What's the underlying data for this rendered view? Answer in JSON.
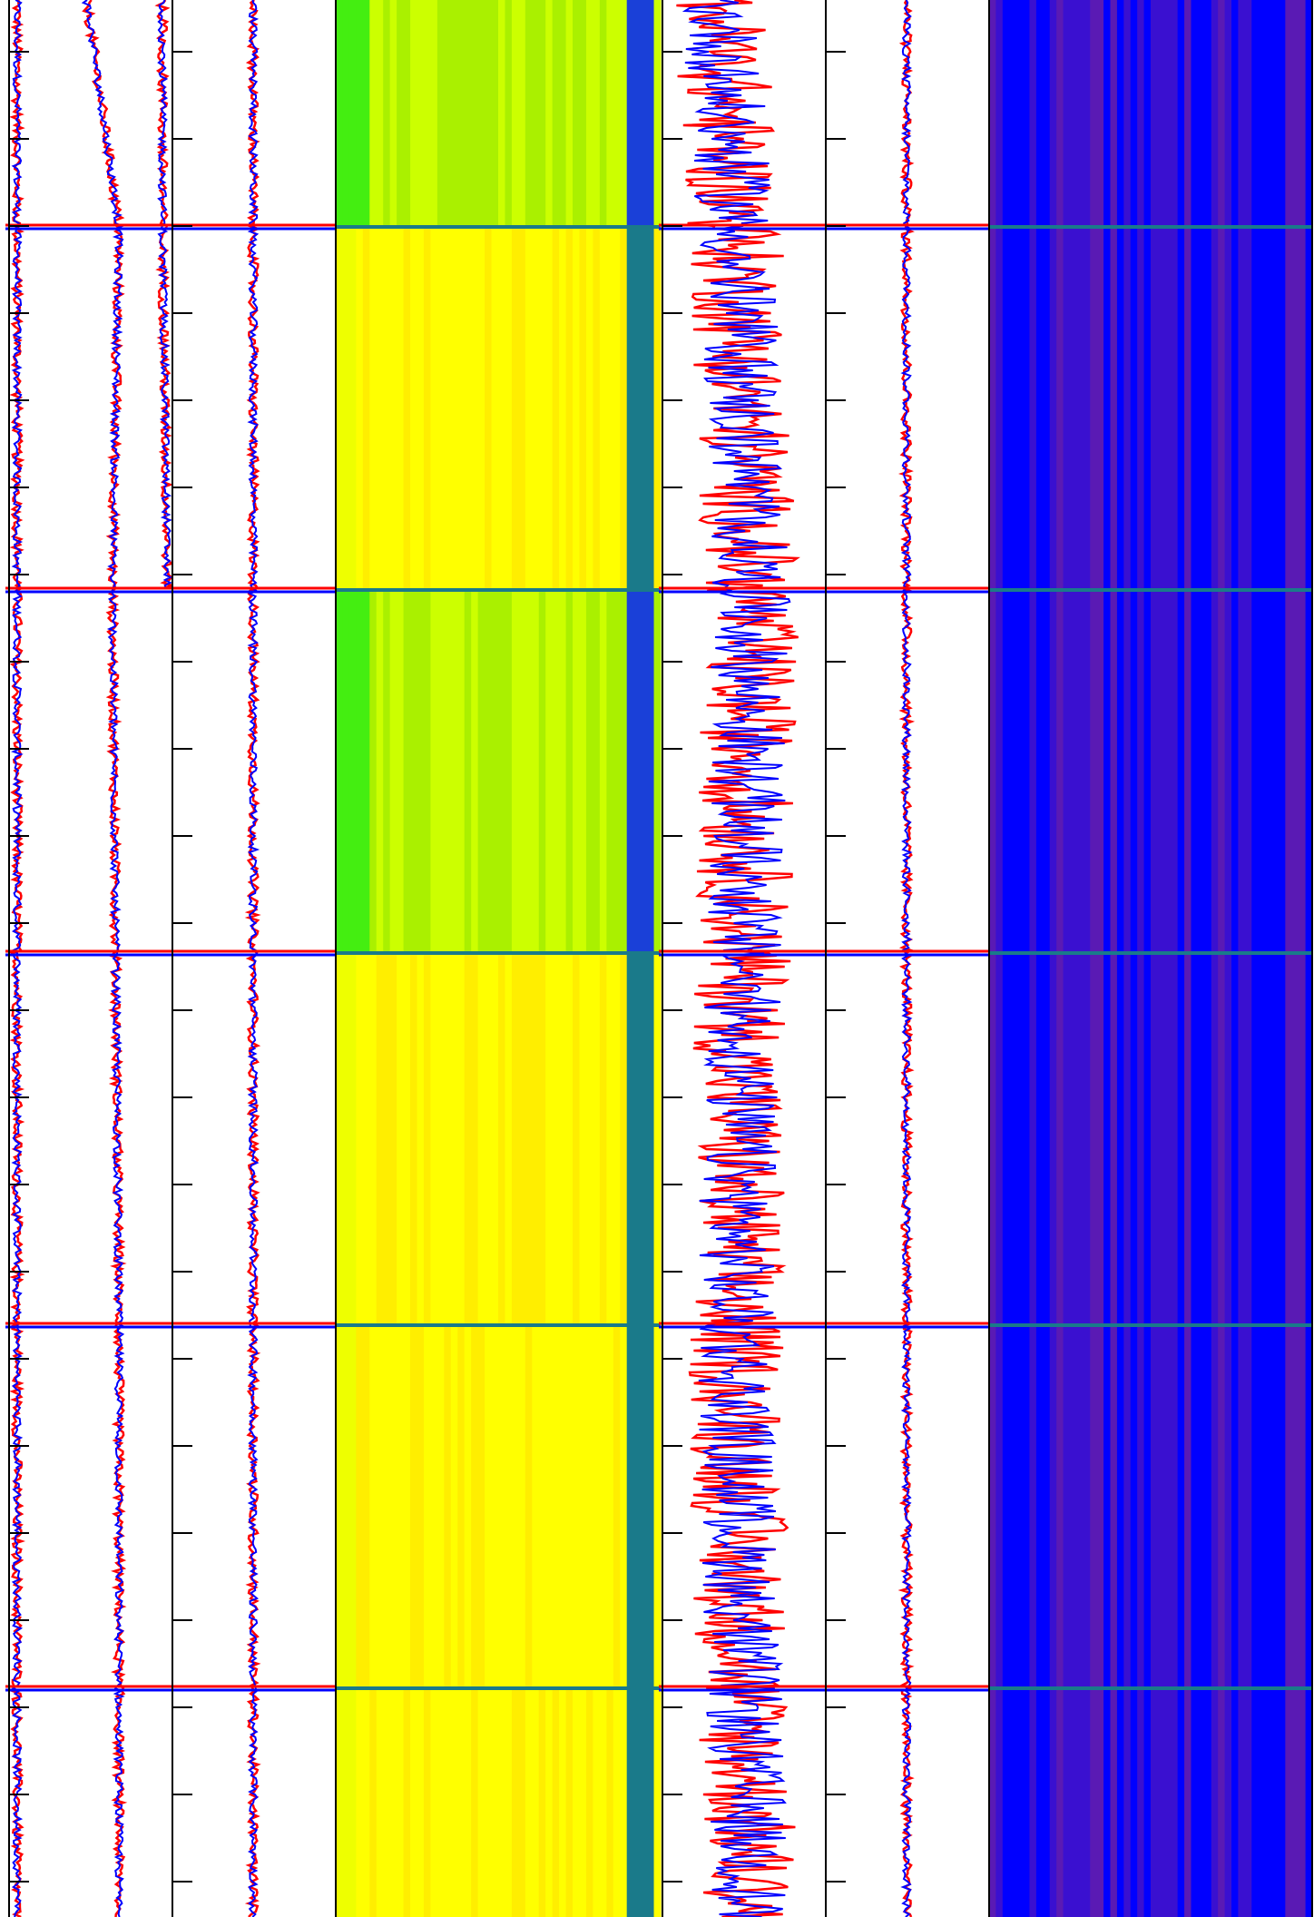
{
  "figure": {
    "orientation": "vertical-track-log",
    "ylabel": "",
    "legend": "none"
  },
  "colors": {
    "trace_primary": "#ff0000",
    "trace_secondary": "#0000ff",
    "axis": "#000000",
    "background": "#ffffff",
    "heatmap_yellow": "#ffff00",
    "heatmap_green": "#66ee00",
    "heatmap_teal": "#1a7a8a",
    "heatmap_blue": "#0000ff",
    "heatmap_purple": "#5a1ab4"
  },
  "chart_data": [
    {
      "type": "line",
      "track": 1,
      "title": "",
      "xlabel": "",
      "grid": false,
      "boundaries_depth": [
        250,
        650,
        1050,
        1460,
        1860
      ],
      "ylim": [
        0,
        2112
      ],
      "series": [
        {
          "depth": [
            0,
            250,
            650,
            1050,
            1460,
            1860,
            2112
          ],
          "values": [
            0.05,
            0.05,
            0.05,
            0.05,
            0.05,
            0.05,
            0.05
          ]
        },
        {
          "depth": [
            0,
            250,
            650,
            1050,
            1460,
            1860,
            2112
          ],
          "values": [
            0.48,
            0.68,
            0.64,
            0.66,
            0.68,
            0.68,
            0.68
          ]
        },
        {
          "depth": [
            0,
            250,
            650,
            1050,
            2112
          ],
          "values": [
            0.95,
            0.95,
            0.98,
            null,
            null
          ]
        }
      ]
    },
    {
      "type": "line",
      "track": 2,
      "title": "",
      "xlabel": "",
      "grid": false,
      "boundaries_depth": [
        250,
        650,
        1050,
        1460,
        1860
      ],
      "ylim": [
        0,
        2112
      ],
      "series": [
        {
          "depth": [
            0,
            2112
          ],
          "values": [
            0.5,
            0.5
          ]
        }
      ]
    },
    {
      "type": "heatmap",
      "track": 3,
      "title": "",
      "xlabel": "",
      "boundaries_depth": [
        250,
        650,
        1050,
        1460,
        1860
      ],
      "ylim": [
        0,
        2112
      ],
      "zones": [
        {
          "from": 0,
          "to": 250,
          "tone": "green"
        },
        {
          "from": 250,
          "to": 650,
          "tone": "yellow"
        },
        {
          "from": 650,
          "to": 1050,
          "tone": "green"
        },
        {
          "from": 1050,
          "to": 1460,
          "tone": "yellow"
        },
        {
          "from": 1460,
          "to": 1860,
          "tone": "yellow"
        },
        {
          "from": 1860,
          "to": 2112,
          "tone": "yellow"
        }
      ]
    },
    {
      "type": "line",
      "track": 4,
      "title": "",
      "xlabel": "",
      "grid": false,
      "boundaries_depth": [
        250,
        650,
        1050,
        1460,
        1860
      ],
      "ylim": [
        0,
        2112
      ],
      "series": [
        {
          "depth": [
            0,
            250,
            650,
            1050,
            1460,
            1860,
            2112
          ],
          "values": [
            0.35,
            0.45,
            0.55,
            0.5,
            0.45,
            0.5,
            0.55
          ],
          "spread": 0.3
        }
      ]
    },
    {
      "type": "line",
      "track": 5,
      "title": "",
      "xlabel": "",
      "grid": false,
      "boundaries_depth": [
        250,
        650,
        1050,
        1460,
        1860
      ],
      "ylim": [
        0,
        2112
      ],
      "series": [
        {
          "depth": [
            0,
            2112
          ],
          "values": [
            0.5,
            0.5
          ]
        }
      ]
    },
    {
      "type": "heatmap",
      "track": 6,
      "title": "",
      "xlabel": "",
      "boundaries_depth": [
        250,
        650,
        1050,
        1460,
        1860
      ],
      "ylim": [
        0,
        2112
      ],
      "zones": [
        {
          "from": 0,
          "to": 2112,
          "tone": "blue-purple"
        }
      ]
    }
  ]
}
